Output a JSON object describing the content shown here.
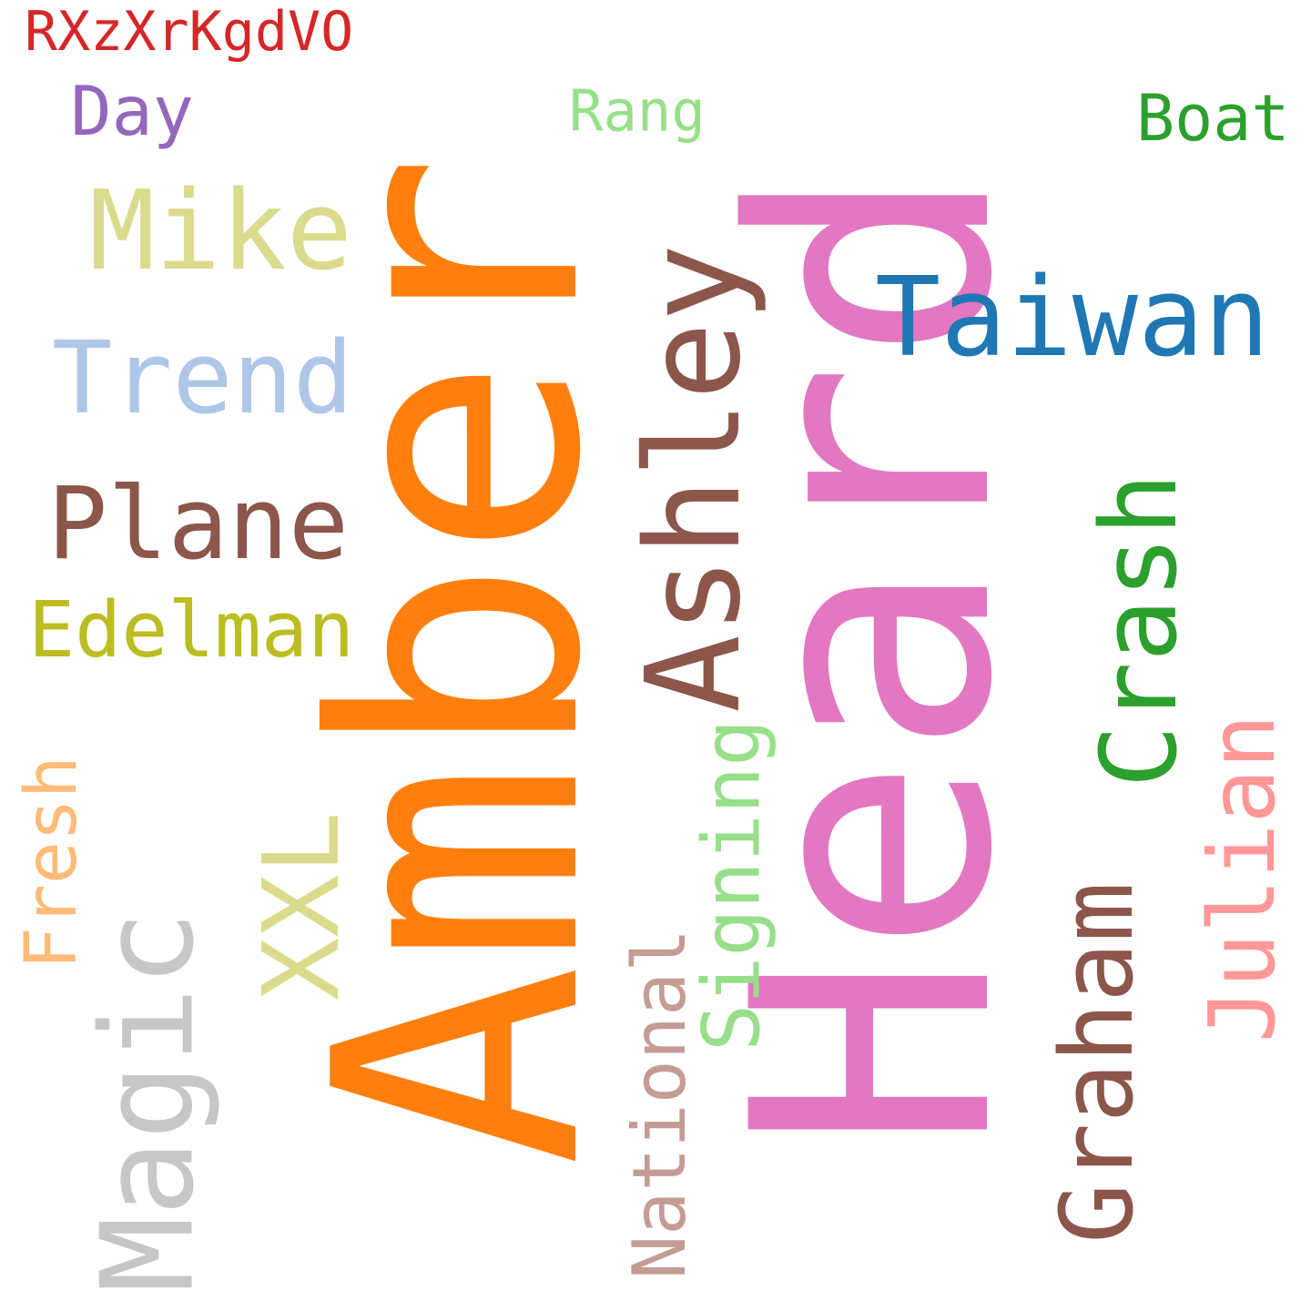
{
  "words": [
    {
      "key": "amber",
      "text": "Amber",
      "color": "#ff7f0e",
      "vertical": true
    },
    {
      "key": "heard",
      "text": "Heard",
      "color": "#e377c2",
      "vertical": true
    },
    {
      "key": "taiwan",
      "text": "Taiwan",
      "color": "#1f77b4",
      "vertical": false
    },
    {
      "key": "plane",
      "text": "Plane",
      "color": "#8c564b",
      "vertical": false
    },
    {
      "key": "mike",
      "text": "Mike",
      "color": "#dbdb8d",
      "vertical": false
    },
    {
      "key": "trend",
      "text": "Trend",
      "color": "#aec7e8",
      "vertical": false
    },
    {
      "key": "ashley",
      "text": "Ashley",
      "color": "#8c564b",
      "vertical": true
    },
    {
      "key": "crash",
      "text": "Crash",
      "color": "#2ca02c",
      "vertical": true
    },
    {
      "key": "graham",
      "text": "Graham",
      "color": "#8c564b",
      "vertical": true
    },
    {
      "key": "magic",
      "text": "Magic",
      "color": "#c7c7c7",
      "vertical": true
    },
    {
      "key": "xxl",
      "text": "XXL",
      "color": "#dbdb8d",
      "vertical": true
    },
    {
      "key": "edelman",
      "text": "Edelman",
      "color": "#bcbd22",
      "vertical": false
    },
    {
      "key": "julian",
      "text": "Julian",
      "color": "#ff9896",
      "vertical": true
    },
    {
      "key": "signing",
      "text": "Signing",
      "color": "#98df8a",
      "vertical": true
    },
    {
      "key": "national",
      "text": "National",
      "color": "#c49c94",
      "vertical": true
    },
    {
      "key": "fresh",
      "text": "Fresh",
      "color": "#ffbb78",
      "vertical": true
    },
    {
      "key": "boat",
      "text": "Boat",
      "color": "#2ca02c",
      "vertical": false
    },
    {
      "key": "day",
      "text": "Day",
      "color": "#9467bd",
      "vertical": false
    },
    {
      "key": "rang",
      "text": "Rang",
      "color": "#98df8a",
      "vertical": false
    },
    {
      "key": "rxz",
      "text": "RXzXrKgdVO",
      "color": "#d62728",
      "vertical": false
    }
  ]
}
